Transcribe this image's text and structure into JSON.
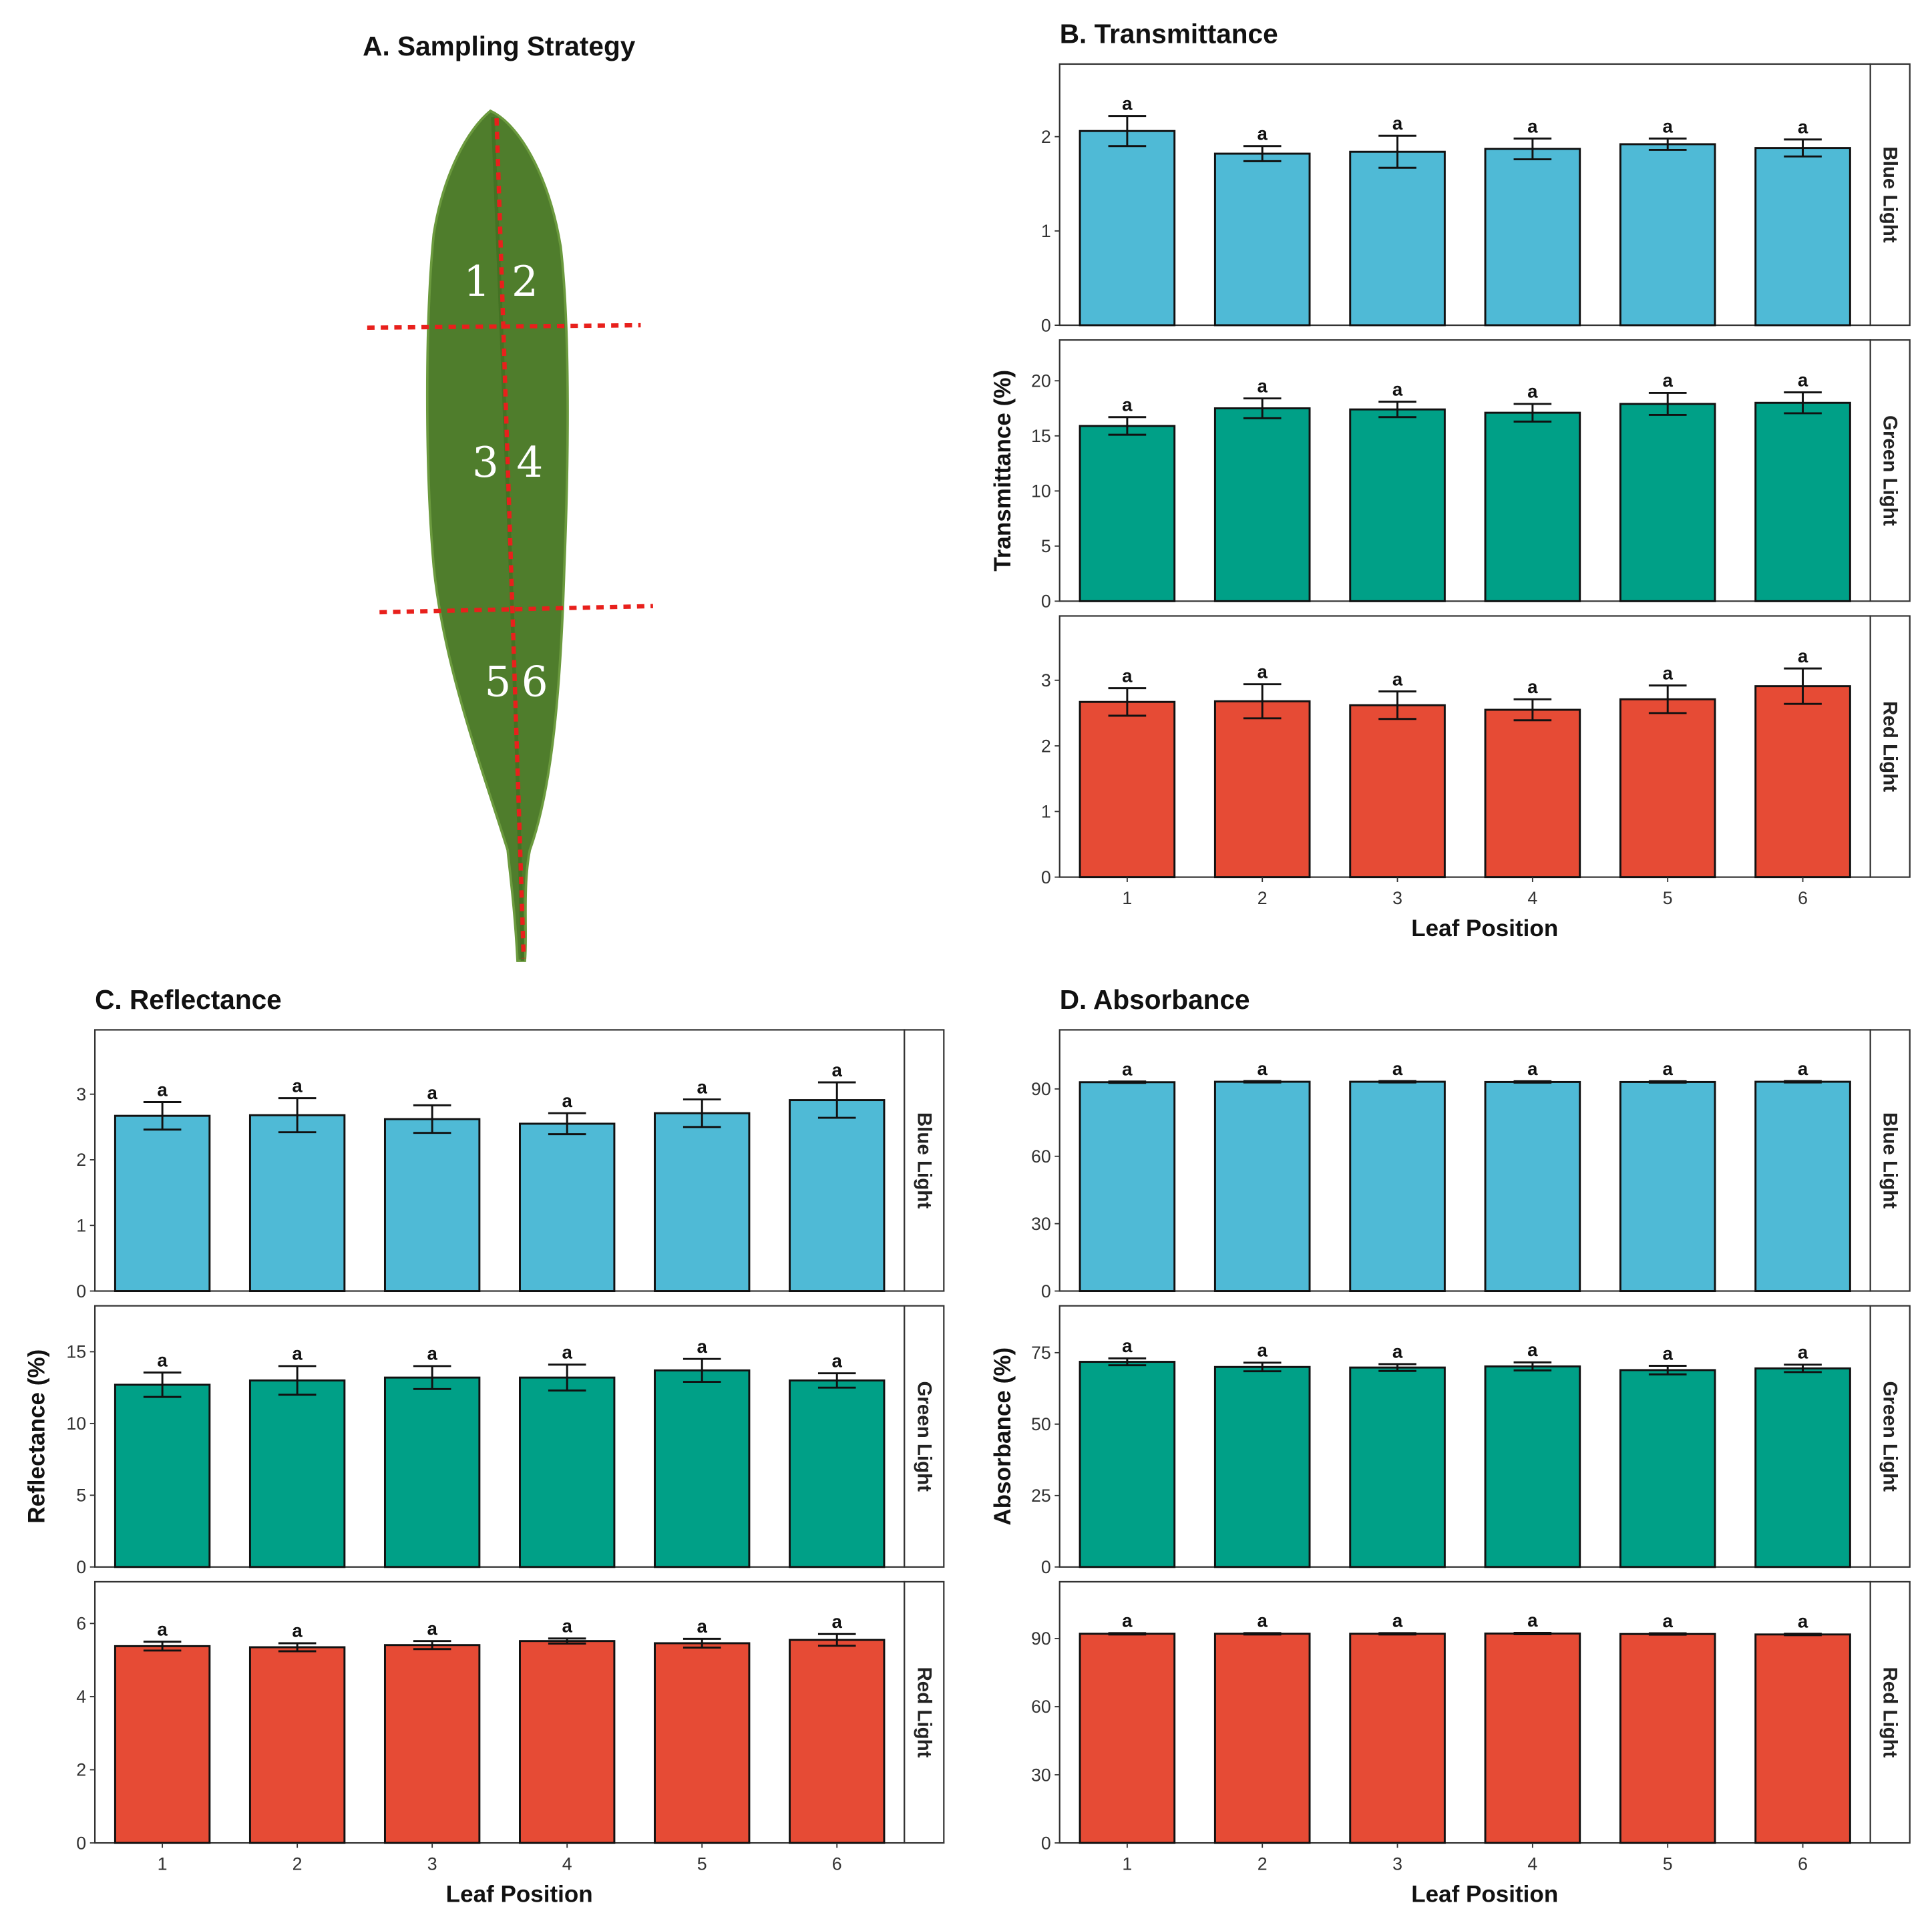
{
  "panel_a": {
    "title": "A. Sampling Strategy",
    "leaf_numbers": [
      "1",
      "2",
      "3",
      "4",
      "5",
      "6"
    ]
  },
  "colors": {
    "Blue Light": "#4fbad6",
    "Green Light": "#00a087",
    "Red Light": "#e64b35"
  },
  "chart_data": [
    {
      "type": "bar",
      "title": "B. Transmittance",
      "xlabel": "Leaf Position",
      "ylabel": "Transmittance (%)",
      "categories": [
        "1",
        "2",
        "3",
        "4",
        "5",
        "6"
      ],
      "facets": [
        {
          "name": "Blue Light",
          "ylim": [
            0,
            2.77
          ],
          "ticks": [
            0,
            1,
            2
          ],
          "values": [
            2.06,
            1.82,
            1.84,
            1.87,
            1.92,
            1.88
          ],
          "errors": [
            0.16,
            0.08,
            0.17,
            0.11,
            0.06,
            0.09
          ],
          "letters": [
            "a",
            "a",
            "a",
            "a",
            "a",
            "a"
          ]
        },
        {
          "name": "Green Light",
          "ylim": [
            0,
            23.7
          ],
          "ticks": [
            0,
            5,
            10,
            15,
            20
          ],
          "values": [
            15.9,
            17.5,
            17.4,
            17.1,
            17.9,
            18.0
          ],
          "errors": [
            0.8,
            0.9,
            0.7,
            0.8,
            1.0,
            0.95
          ],
          "letters": [
            "a",
            "a",
            "a",
            "a",
            "a",
            "a"
          ]
        },
        {
          "name": "Red Light",
          "ylim": [
            0,
            3.98
          ],
          "ticks": [
            0,
            1,
            2,
            3
          ],
          "values": [
            2.67,
            2.68,
            2.62,
            2.55,
            2.71,
            2.91
          ],
          "errors": [
            0.21,
            0.26,
            0.21,
            0.16,
            0.21,
            0.27
          ],
          "letters": [
            "a",
            "a",
            "a",
            "a",
            "a",
            "a"
          ]
        }
      ]
    },
    {
      "type": "bar",
      "title": "C. Reflectance",
      "xlabel": "Leaf Position",
      "ylabel": "Reflectance (%)",
      "categories": [
        "1",
        "2",
        "3",
        "4",
        "5",
        "6"
      ],
      "facets": [
        {
          "name": "Blue Light",
          "ylim": [
            0,
            3.98
          ],
          "ticks": [
            0,
            1,
            2,
            3
          ],
          "values": [
            2.67,
            2.68,
            2.62,
            2.55,
            2.71,
            2.91
          ],
          "errors": [
            0.21,
            0.26,
            0.21,
            0.16,
            0.21,
            0.27
          ],
          "letters": [
            "a",
            "a",
            "a",
            "a",
            "a",
            "a"
          ]
        },
        {
          "name": "Green Light",
          "ylim": [
            0,
            18.2
          ],
          "ticks": [
            0,
            5,
            10,
            15
          ],
          "values": [
            12.7,
            13.0,
            13.2,
            13.2,
            13.7,
            13.0
          ],
          "errors": [
            0.85,
            1.0,
            0.8,
            0.9,
            0.8,
            0.5
          ],
          "letters": [
            "a",
            "a",
            "a",
            "a",
            "a",
            "a"
          ]
        },
        {
          "name": "Red Light",
          "ylim": [
            0,
            7.14
          ],
          "ticks": [
            0,
            2,
            4,
            6
          ],
          "values": [
            5.38,
            5.35,
            5.41,
            5.52,
            5.46,
            5.55
          ],
          "errors": [
            0.12,
            0.11,
            0.11,
            0.07,
            0.12,
            0.16
          ],
          "letters": [
            "a",
            "a",
            "a",
            "a",
            "a",
            "a"
          ]
        }
      ]
    },
    {
      "type": "bar",
      "title": "D. Absorbance",
      "xlabel": "Leaf Position",
      "ylabel": "Absorbance (%)",
      "categories": [
        "1",
        "2",
        "3",
        "4",
        "5",
        "6"
      ],
      "facets": [
        {
          "name": "Blue Light",
          "ylim": [
            0,
            116.3
          ],
          "ticks": [
            0,
            30,
            60,
            90
          ],
          "values": [
            93.0,
            93.2,
            93.2,
            93.1,
            93.1,
            93.2
          ],
          "errors": [
            0.3,
            0.3,
            0.3,
            0.3,
            0.3,
            0.3
          ],
          "letters": [
            "a",
            "a",
            "a",
            "a",
            "a",
            "a"
          ]
        },
        {
          "name": "Green Light",
          "ylim": [
            0,
            91.4
          ],
          "ticks": [
            0,
            25,
            50,
            75
          ],
          "values": [
            71.8,
            70.0,
            69.8,
            70.2,
            68.9,
            69.5
          ],
          "errors": [
            1.2,
            1.5,
            1.2,
            1.4,
            1.5,
            1.3
          ],
          "letters": [
            "a",
            "a",
            "a",
            "a",
            "a",
            "a"
          ]
        },
        {
          "name": "Red Light",
          "ylim": [
            0,
            115
          ],
          "ticks": [
            0,
            30,
            60,
            90
          ],
          "values": [
            92.1,
            92.1,
            92.1,
            92.2,
            92.0,
            91.8
          ],
          "errors": [
            0.3,
            0.3,
            0.3,
            0.3,
            0.3,
            0.3
          ],
          "letters": [
            "a",
            "a",
            "a",
            "a",
            "a",
            "a"
          ]
        }
      ]
    }
  ]
}
